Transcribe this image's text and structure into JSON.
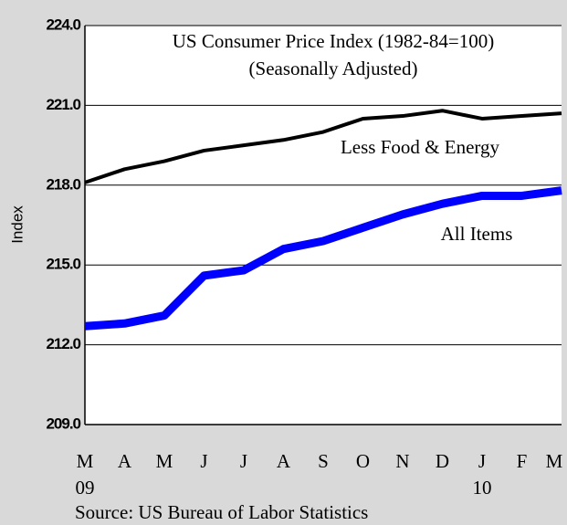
{
  "chart_data": {
    "type": "line",
    "title": "US Consumer Price Index (1982-84=100)",
    "subtitle": "(Seasonally Adjusted)",
    "y_label": "Index",
    "source": "Source: US Bureau of Labor Statistics",
    "categories": [
      "M",
      "A",
      "M",
      "J",
      "J",
      "A",
      "S",
      "O",
      "N",
      "D",
      "J",
      "F",
      "M"
    ],
    "year_labels": [
      "09",
      null,
      null,
      null,
      null,
      null,
      null,
      null,
      null,
      null,
      "10",
      null,
      null
    ],
    "series": [
      {
        "name": "Less Food & Energy",
        "color": "#000000",
        "values": [
          218.1,
          218.6,
          218.9,
          219.3,
          219.5,
          219.7,
          220.0,
          220.5,
          220.6,
          220.8,
          220.5,
          220.6,
          220.7
        ]
      },
      {
        "name": "All Items",
        "color": "#0000ff",
        "values": [
          212.7,
          212.8,
          213.1,
          214.6,
          214.8,
          215.6,
          215.9,
          216.4,
          216.9,
          217.3,
          217.6,
          217.6,
          217.8
        ]
      }
    ],
    "ylim": [
      209,
      224
    ],
    "yticks": [
      {
        "value": 209,
        "label": "209.0"
      },
      {
        "value": 212,
        "label": "212.0"
      },
      {
        "value": 215,
        "label": "215.0"
      },
      {
        "value": 218,
        "label": "218.0"
      },
      {
        "value": 221,
        "label": "221.0"
      },
      {
        "value": 224,
        "label": "224.0"
      }
    ],
    "grid": true
  }
}
